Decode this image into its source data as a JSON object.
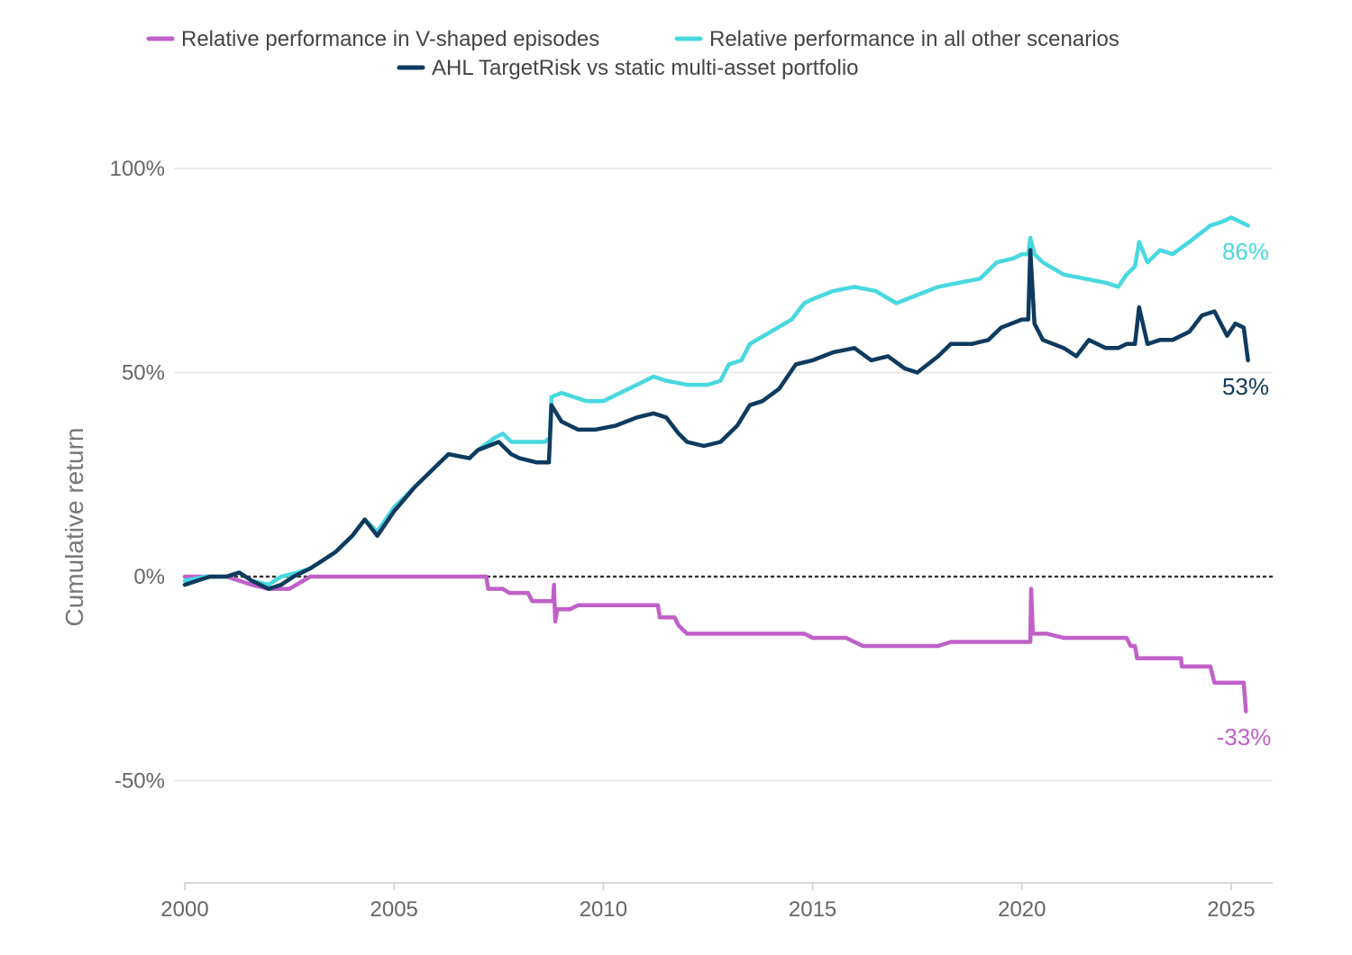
{
  "chart_data": {
    "type": "line",
    "title": "",
    "xlabel": "",
    "ylabel": "Cumulative return",
    "xlim": [
      2000,
      2026
    ],
    "ylim": [
      -75,
      100
    ],
    "x_ticks": [
      2000,
      2005,
      2010,
      2015,
      2020,
      2025
    ],
    "x_tick_labels": [
      "2000",
      "2005",
      "2010",
      "2015",
      "2020",
      "2025"
    ],
    "y_ticks": [
      100,
      50,
      0,
      -50
    ],
    "y_tick_labels": [
      "100%",
      "50%",
      "0%",
      "-50%"
    ],
    "grid": "horizontal",
    "legend_position": "top",
    "zero_line": "dotted",
    "series": [
      {
        "name": "Relative performance in V-shaped episodes",
        "color": "#c060c8",
        "end_label": "-33%",
        "points": [
          [
            2000.0,
            0
          ],
          [
            2000.5,
            0
          ],
          [
            2001.0,
            0
          ],
          [
            2001.3,
            -1
          ],
          [
            2001.6,
            -2
          ],
          [
            2002.0,
            -3
          ],
          [
            2002.5,
            -3
          ],
          [
            2003.0,
            0
          ],
          [
            2003.2,
            0
          ],
          [
            2005.0,
            0
          ],
          [
            2006.0,
            0
          ],
          [
            2006.8,
            0
          ],
          [
            2007.2,
            0
          ],
          [
            2007.25,
            -3
          ],
          [
            2007.6,
            -3
          ],
          [
            2007.75,
            -4
          ],
          [
            2008.2,
            -4
          ],
          [
            2008.3,
            -6
          ],
          [
            2008.8,
            -6
          ],
          [
            2008.82,
            -2
          ],
          [
            2008.85,
            -11
          ],
          [
            2008.9,
            -8
          ],
          [
            2009.2,
            -8
          ],
          [
            2009.4,
            -7
          ],
          [
            2010.0,
            -7
          ],
          [
            2010.6,
            -7
          ],
          [
            2010.8,
            -7
          ],
          [
            2011.3,
            -7
          ],
          [
            2011.35,
            -10
          ],
          [
            2011.7,
            -10
          ],
          [
            2011.8,
            -12
          ],
          [
            2012.0,
            -14
          ],
          [
            2013.0,
            -14
          ],
          [
            2013.5,
            -14
          ],
          [
            2014.0,
            -14
          ],
          [
            2014.8,
            -14
          ],
          [
            2015.0,
            -15
          ],
          [
            2015.8,
            -15
          ],
          [
            2016.0,
            -16
          ],
          [
            2016.2,
            -17
          ],
          [
            2016.6,
            -17
          ],
          [
            2017.0,
            -17
          ],
          [
            2018.0,
            -17
          ],
          [
            2018.3,
            -16
          ],
          [
            2019.0,
            -16
          ],
          [
            2020.0,
            -16
          ],
          [
            2020.2,
            -16
          ],
          [
            2020.22,
            -3
          ],
          [
            2020.26,
            -14
          ],
          [
            2020.6,
            -14
          ],
          [
            2021.0,
            -15
          ],
          [
            2022.0,
            -15
          ],
          [
            2022.3,
            -15
          ],
          [
            2022.5,
            -15
          ],
          [
            2022.6,
            -17
          ],
          [
            2022.7,
            -17
          ],
          [
            2022.75,
            -20
          ],
          [
            2023.5,
            -20
          ],
          [
            2023.8,
            -20
          ],
          [
            2023.82,
            -22
          ],
          [
            2024.5,
            -22
          ],
          [
            2024.6,
            -26
          ],
          [
            2025.3,
            -26
          ],
          [
            2025.35,
            -33
          ]
        ]
      },
      {
        "name": "Relative performance in all other scenarios",
        "color": "#48d8e0",
        "end_label": "86%",
        "points": [
          [
            2000.0,
            -1
          ],
          [
            2000.5,
            0
          ],
          [
            2001.0,
            0
          ],
          [
            2001.3,
            1
          ],
          [
            2001.6,
            -1
          ],
          [
            2002.0,
            -2
          ],
          [
            2002.3,
            0
          ],
          [
            2002.7,
            1
          ],
          [
            2003.0,
            2
          ],
          [
            2003.3,
            4
          ],
          [
            2003.6,
            6
          ],
          [
            2004.0,
            10
          ],
          [
            2004.3,
            14
          ],
          [
            2004.6,
            11
          ],
          [
            2005.0,
            17
          ],
          [
            2005.5,
            22
          ],
          [
            2006.0,
            27
          ],
          [
            2006.3,
            30
          ],
          [
            2006.8,
            29
          ],
          [
            2007.0,
            31
          ],
          [
            2007.4,
            34
          ],
          [
            2007.6,
            35
          ],
          [
            2007.8,
            33
          ],
          [
            2008.2,
            33
          ],
          [
            2008.6,
            33
          ],
          [
            2008.72,
            34
          ],
          [
            2008.76,
            44
          ],
          [
            2009.0,
            45
          ],
          [
            2009.3,
            44
          ],
          [
            2009.6,
            43
          ],
          [
            2010.0,
            43
          ],
          [
            2010.4,
            45
          ],
          [
            2010.8,
            47
          ],
          [
            2011.2,
            49
          ],
          [
            2011.5,
            48
          ],
          [
            2012.0,
            47
          ],
          [
            2012.5,
            47
          ],
          [
            2012.8,
            48
          ],
          [
            2013.0,
            52
          ],
          [
            2013.3,
            53
          ],
          [
            2013.5,
            57
          ],
          [
            2014.0,
            60
          ],
          [
            2014.5,
            63
          ],
          [
            2014.8,
            67
          ],
          [
            2015.0,
            68
          ],
          [
            2015.5,
            70
          ],
          [
            2016.0,
            71
          ],
          [
            2016.5,
            70
          ],
          [
            2017.0,
            67
          ],
          [
            2017.5,
            69
          ],
          [
            2018.0,
            71
          ],
          [
            2018.5,
            72
          ],
          [
            2019.0,
            73
          ],
          [
            2019.4,
            77
          ],
          [
            2019.8,
            78
          ],
          [
            2020.0,
            79
          ],
          [
            2020.15,
            79
          ],
          [
            2020.2,
            83
          ],
          [
            2020.3,
            79
          ],
          [
            2020.5,
            77
          ],
          [
            2021.0,
            74
          ],
          [
            2021.5,
            73
          ],
          [
            2022.0,
            72
          ],
          [
            2022.3,
            71
          ],
          [
            2022.5,
            74
          ],
          [
            2022.7,
            76
          ],
          [
            2022.8,
            82
          ],
          [
            2023.0,
            77
          ],
          [
            2023.3,
            80
          ],
          [
            2023.6,
            79
          ],
          [
            2024.0,
            82
          ],
          [
            2024.5,
            86
          ],
          [
            2024.8,
            87
          ],
          [
            2025.0,
            88
          ],
          [
            2025.2,
            87
          ],
          [
            2025.4,
            86
          ]
        ]
      },
      {
        "name": "AHL TargetRisk vs static multi-asset portfolio",
        "color": "#0e3a5e",
        "end_label": "53%",
        "points": [
          [
            2000.0,
            -2
          ],
          [
            2000.3,
            -1
          ],
          [
            2000.6,
            0
          ],
          [
            2001.0,
            0
          ],
          [
            2001.3,
            1
          ],
          [
            2001.6,
            -1
          ],
          [
            2002.0,
            -3
          ],
          [
            2002.3,
            -2
          ],
          [
            2002.6,
            0
          ],
          [
            2003.0,
            2
          ],
          [
            2003.3,
            4
          ],
          [
            2003.6,
            6
          ],
          [
            2004.0,
            10
          ],
          [
            2004.3,
            14
          ],
          [
            2004.6,
            10
          ],
          [
            2005.0,
            16
          ],
          [
            2005.5,
            22
          ],
          [
            2006.0,
            27
          ],
          [
            2006.3,
            30
          ],
          [
            2006.8,
            29
          ],
          [
            2007.0,
            31
          ],
          [
            2007.5,
            33
          ],
          [
            2007.8,
            30
          ],
          [
            2008.0,
            29
          ],
          [
            2008.4,
            28
          ],
          [
            2008.7,
            28
          ],
          [
            2008.76,
            42
          ],
          [
            2009.0,
            38
          ],
          [
            2009.4,
            36
          ],
          [
            2009.8,
            36
          ],
          [
            2010.3,
            37
          ],
          [
            2010.8,
            39
          ],
          [
            2011.2,
            40
          ],
          [
            2011.5,
            39
          ],
          [
            2011.8,
            35
          ],
          [
            2012.0,
            33
          ],
          [
            2012.4,
            32
          ],
          [
            2012.8,
            33
          ],
          [
            2013.2,
            37
          ],
          [
            2013.5,
            42
          ],
          [
            2013.8,
            43
          ],
          [
            2014.2,
            46
          ],
          [
            2014.6,
            52
          ],
          [
            2015.0,
            53
          ],
          [
            2015.5,
            55
          ],
          [
            2016.0,
            56
          ],
          [
            2016.4,
            53
          ],
          [
            2016.8,
            54
          ],
          [
            2017.2,
            51
          ],
          [
            2017.5,
            50
          ],
          [
            2018.0,
            54
          ],
          [
            2018.3,
            57
          ],
          [
            2018.8,
            57
          ],
          [
            2019.2,
            58
          ],
          [
            2019.5,
            61
          ],
          [
            2020.0,
            63
          ],
          [
            2020.15,
            63
          ],
          [
            2020.2,
            80
          ],
          [
            2020.3,
            62
          ],
          [
            2020.5,
            58
          ],
          [
            2021.0,
            56
          ],
          [
            2021.3,
            54
          ],
          [
            2021.6,
            58
          ],
          [
            2022.0,
            56
          ],
          [
            2022.3,
            56
          ],
          [
            2022.5,
            57
          ],
          [
            2022.7,
            57
          ],
          [
            2022.8,
            66
          ],
          [
            2023.0,
            57
          ],
          [
            2023.3,
            58
          ],
          [
            2023.6,
            58
          ],
          [
            2024.0,
            60
          ],
          [
            2024.3,
            64
          ],
          [
            2024.6,
            65
          ],
          [
            2024.9,
            59
          ],
          [
            2025.1,
            62
          ],
          [
            2025.3,
            61
          ],
          [
            2025.4,
            53
          ]
        ]
      }
    ]
  }
}
